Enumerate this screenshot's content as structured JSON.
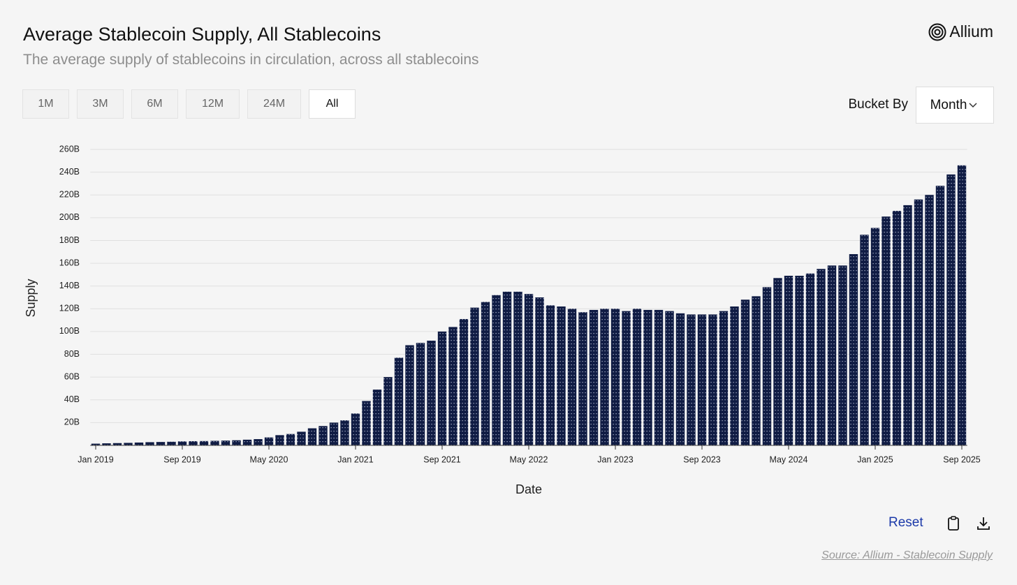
{
  "header": {
    "title": "Average Stablecoin Supply, All Stablecoins",
    "subtitle": "The average supply of stablecoins in circulation, across all stablecoins",
    "logo": "Allium"
  },
  "controls": {
    "ranges": [
      "1M",
      "3M",
      "6M",
      "12M",
      "24M",
      "All"
    ],
    "active_range": "All",
    "bucket_label": "Bucket By",
    "bucket_value": "Month"
  },
  "footer": {
    "reset": "Reset",
    "source": "Source: Allium - Stablecoin Supply"
  },
  "chart_data": {
    "type": "bar",
    "x_label": "Date",
    "y_label": "Supply",
    "color": "#101c44",
    "grid": true,
    "categories": [
      "Jan 2019",
      null,
      null,
      null,
      null,
      null,
      null,
      null,
      "Sep 2019",
      null,
      null,
      null,
      null,
      null,
      null,
      null,
      "May 2020",
      null,
      null,
      null,
      null,
      null,
      null,
      null,
      "Jan 2021",
      null,
      null,
      null,
      null,
      null,
      null,
      null,
      "Sep 2021",
      null,
      null,
      null,
      null,
      null,
      null,
      null,
      "May 2022",
      null,
      null,
      null,
      null,
      null,
      null,
      null,
      "Jan 2023",
      null,
      null,
      null,
      null,
      null,
      null,
      null,
      "Sep 2023",
      null,
      null,
      null,
      null,
      null,
      null,
      null,
      "May 2024",
      null,
      null,
      null,
      null,
      null,
      null,
      null,
      "Jan 2025",
      null,
      null,
      null,
      null,
      null,
      null,
      null,
      "Sep 2025"
    ],
    "values": [
      1.5,
      1.8,
      2.0,
      2.2,
      2.5,
      2.8,
      3.0,
      3.2,
      3.5,
      3.7,
      3.8,
      4.0,
      4.2,
      4.5,
      5.0,
      5.5,
      7,
      9,
      10,
      12,
      15,
      17,
      20,
      22,
      28,
      39,
      49,
      60,
      77,
      88,
      90,
      92,
      100,
      104,
      111,
      121,
      126,
      132,
      135,
      135,
      133,
      130,
      123,
      122,
      120,
      117,
      119,
      120,
      120,
      118,
      120,
      119,
      119,
      118,
      116,
      115,
      115,
      115,
      118,
      122,
      128,
      131,
      139,
      147,
      149,
      149,
      151,
      155,
      158,
      158,
      168,
      185,
      191,
      201,
      206,
      211,
      216,
      220,
      228,
      238,
      246
    ],
    "ylim": [
      0,
      260
    ],
    "yticks": [
      {
        "value": 20,
        "label": "20B"
      },
      {
        "value": 40,
        "label": "40B"
      },
      {
        "value": 60,
        "label": "60B"
      },
      {
        "value": 80,
        "label": "80B"
      },
      {
        "value": 100,
        "label": "100B"
      },
      {
        "value": 120,
        "label": "120B"
      },
      {
        "value": 140,
        "label": "140B"
      },
      {
        "value": 160,
        "label": "160B"
      },
      {
        "value": 180,
        "label": "180B"
      },
      {
        "value": 200,
        "label": "200B"
      },
      {
        "value": 220,
        "label": "220B"
      },
      {
        "value": 240,
        "label": "240B"
      },
      {
        "value": 260,
        "label": "260B"
      }
    ]
  }
}
